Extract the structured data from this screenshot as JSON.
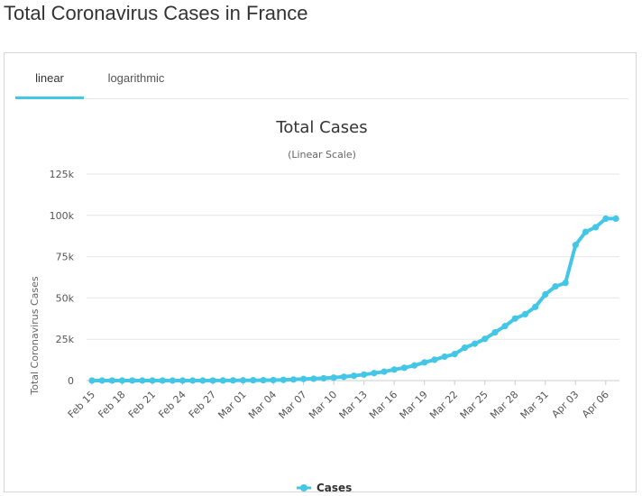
{
  "page": {
    "title": "Total Coronavirus Cases in France"
  },
  "tabs": [
    {
      "label": "linear",
      "active": true
    },
    {
      "label": "logarithmic",
      "active": false
    }
  ],
  "colors": {
    "series": "#44c7e6",
    "tab_active": "#44c7e6",
    "grid": "#e6e6e6"
  },
  "chart_data": {
    "type": "line",
    "title": "Total Cases",
    "subtitle": "(Linear Scale)",
    "ylabel": "Total Coronavirus Cases",
    "xlabel": "",
    "ylim": [
      0,
      125000
    ],
    "yticks": [
      "0",
      "25k",
      "50k",
      "75k",
      "100k",
      "125k"
    ],
    "ytick_values": [
      0,
      25000,
      50000,
      75000,
      100000,
      125000
    ],
    "grid": true,
    "legend": "bottom-center",
    "x": [
      "Feb 15",
      "Feb 16",
      "Feb 17",
      "Feb 18",
      "Feb 19",
      "Feb 20",
      "Feb 21",
      "Feb 22",
      "Feb 23",
      "Feb 24",
      "Feb 25",
      "Feb 26",
      "Feb 27",
      "Feb 28",
      "Feb 29",
      "Mar 01",
      "Mar 02",
      "Mar 03",
      "Mar 04",
      "Mar 05",
      "Mar 06",
      "Mar 07",
      "Mar 08",
      "Mar 09",
      "Mar 10",
      "Mar 11",
      "Mar 12",
      "Mar 13",
      "Mar 14",
      "Mar 15",
      "Mar 16",
      "Mar 17",
      "Mar 18",
      "Mar 19",
      "Mar 20",
      "Mar 21",
      "Mar 22",
      "Mar 23",
      "Mar 24",
      "Mar 25",
      "Mar 26",
      "Mar 27",
      "Mar 28",
      "Mar 29",
      "Mar 30",
      "Mar 31",
      "Apr 01",
      "Apr 02",
      "Apr 03",
      "Apr 04",
      "Apr 05",
      "Apr 06",
      "Apr 07"
    ],
    "xtick_labels": [
      "Feb 15",
      "Feb 18",
      "Feb 21",
      "Feb 24",
      "Feb 27",
      "Mar 01",
      "Mar 04",
      "Mar 07",
      "Mar 10",
      "Mar 13",
      "Mar 16",
      "Mar 19",
      "Mar 22",
      "Mar 25",
      "Mar 28",
      "Mar 31",
      "Apr 03",
      "Apr 06"
    ],
    "series": [
      {
        "name": "Cases",
        "values": [
          12,
          12,
          12,
          12,
          12,
          12,
          12,
          12,
          12,
          12,
          14,
          18,
          38,
          57,
          100,
          130,
          191,
          212,
          285,
          423,
          653,
          949,
          1126,
          1412,
          1784,
          2281,
          2876,
          3661,
          4499,
          5423,
          6633,
          7730,
          9134,
          10995,
          12612,
          14459,
          16018,
          19856,
          22304,
          25233,
          29155,
          32964,
          37575,
          40174,
          44550,
          52128,
          56989,
          59105,
          82048,
          90015,
          92839,
          98010,
          98010
        ]
      }
    ]
  }
}
